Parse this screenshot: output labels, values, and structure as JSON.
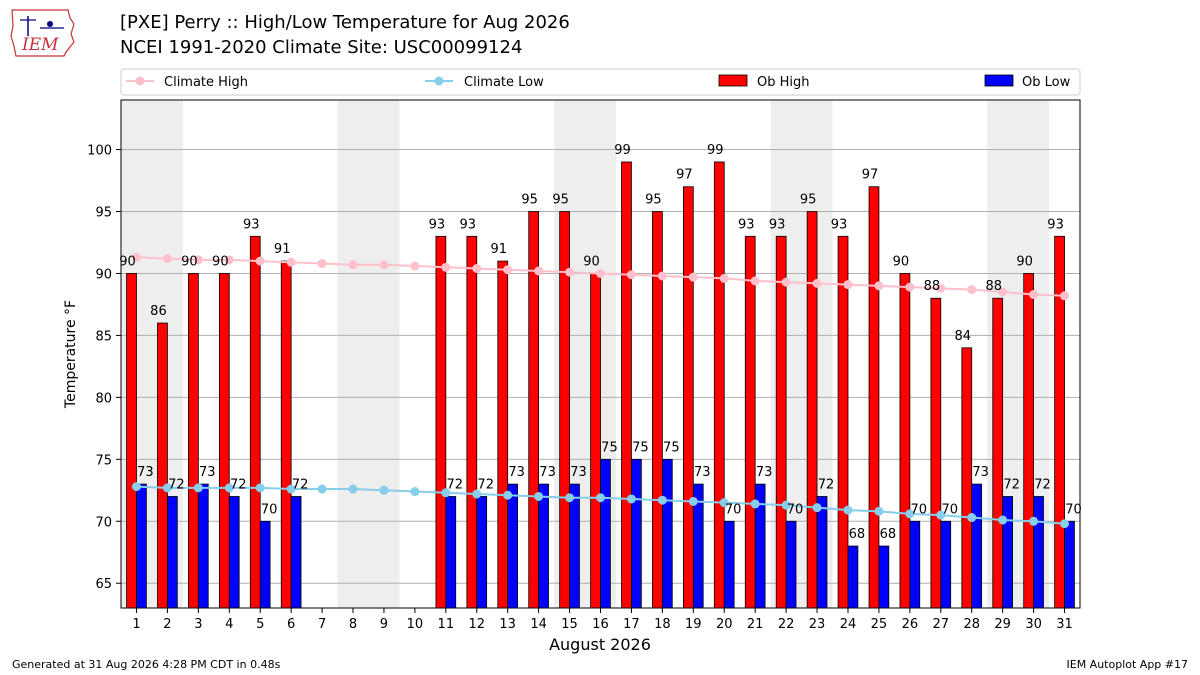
{
  "header": {
    "title_line1": "[PXE] Perry :: High/Low Temperature for Aug 2026",
    "title_line2": "NCEI 1991-2020 Climate Site: USC00099124",
    "logo_text": "IEM"
  },
  "footer": {
    "generated": "Generated at 31 Aug 2026 4:28 PM CDT in 0.48s",
    "app": "IEM Autoplot App #17"
  },
  "colors": {
    "climate_high": "#ffc0cb",
    "climate_low": "#87ceeb",
    "ob_high": "#ff0000",
    "ob_low": "#0000ff",
    "weekend_shade": "#eeeeee"
  },
  "chart_data": {
    "type": "bar",
    "xlabel": "August 2026",
    "ylabel": "Temperature °F",
    "ylim": [
      63,
      104
    ],
    "xlim": [
      0.5,
      31.5
    ],
    "yticks": [
      65,
      70,
      75,
      80,
      85,
      90,
      95,
      100
    ],
    "grid": "horizontal",
    "legend_position": "top",
    "categories": [
      1,
      2,
      3,
      4,
      5,
      6,
      7,
      8,
      9,
      10,
      11,
      12,
      13,
      14,
      15,
      16,
      17,
      18,
      19,
      20,
      21,
      22,
      23,
      24,
      25,
      26,
      27,
      28,
      29,
      30,
      31
    ],
    "shaded_days": [
      1,
      2,
      8,
      9,
      15,
      16,
      22,
      23,
      29,
      30
    ],
    "series": [
      {
        "name": "Climate High",
        "kind": "line",
        "values": [
          91.3,
          91.2,
          91.1,
          91.1,
          91.0,
          90.9,
          90.8,
          90.7,
          90.7,
          90.6,
          90.5,
          90.4,
          90.3,
          90.2,
          90.1,
          90.0,
          89.9,
          89.8,
          89.7,
          89.6,
          89.4,
          89.3,
          89.2,
          89.1,
          89.0,
          88.9,
          88.8,
          88.7,
          88.5,
          88.3,
          88.2
        ]
      },
      {
        "name": "Climate Low",
        "kind": "line",
        "values": [
          72.8,
          72.7,
          72.7,
          72.7,
          72.7,
          72.6,
          72.6,
          72.6,
          72.5,
          72.4,
          72.3,
          72.2,
          72.1,
          72.0,
          71.9,
          71.9,
          71.8,
          71.7,
          71.6,
          71.5,
          71.4,
          71.3,
          71.1,
          70.9,
          70.8,
          70.6,
          70.5,
          70.3,
          70.1,
          70.0,
          69.8
        ]
      },
      {
        "name": "Ob High",
        "kind": "bar",
        "values": [
          90,
          86,
          90,
          90,
          93,
          91,
          null,
          null,
          null,
          null,
          93,
          93,
          91,
          95,
          95,
          90,
          99,
          95,
          97,
          99,
          93,
          93,
          95,
          93,
          97,
          90,
          88,
          84,
          88,
          90,
          93
        ]
      },
      {
        "name": "Ob Low",
        "kind": "bar",
        "values": [
          73,
          72,
          73,
          72,
          70,
          72,
          null,
          null,
          null,
          null,
          72,
          72,
          73,
          73,
          73,
          75,
          75,
          75,
          73,
          70,
          73,
          70,
          72,
          68,
          68,
          70,
          70,
          73,
          72,
          72,
          70
        ]
      }
    ]
  }
}
